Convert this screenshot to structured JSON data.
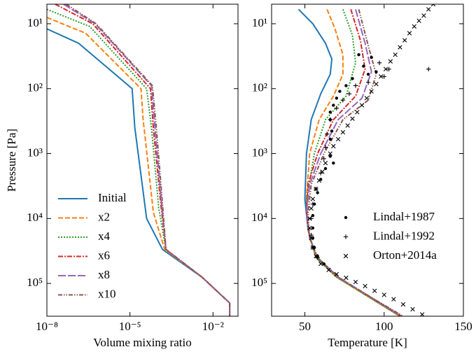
{
  "chart_data": [
    {
      "type": "line",
      "xlabel": "Volume mixing ratio",
      "ylabel": "Pressure [Pa]",
      "xscale": "log",
      "yscale": "log",
      "xlim": [
        1e-08,
        0.08
      ],
      "ylim": [
        320000,
        5
      ],
      "xticks": [
        {
          "value": 1e-08,
          "label": "10⁻⁸"
        },
        {
          "value": 1e-05,
          "label": "10⁻⁵"
        },
        {
          "value": 0.01,
          "label": "10⁻²"
        }
      ],
      "yticks": [
        {
          "value": 10,
          "label": "10¹"
        },
        {
          "value": 100,
          "label": "10²"
        },
        {
          "value": 1000,
          "label": "10³"
        },
        {
          "value": 10000,
          "label": "10⁴"
        },
        {
          "value": 100000,
          "label": "10⁵"
        }
      ],
      "legend": "lower left",
      "series": [
        {
          "name": "Initial",
          "color": "#1f77b4",
          "style": "solid",
          "x": [
            1e-08,
            1.4e-07,
            1.2e-05,
            1.5e-05,
            4e-05,
            0.00015,
            0.004,
            0.04,
            0.04
          ],
          "y": [
            12,
            20,
            100,
            400,
            10000,
            30000,
            80000,
            200000,
            320000
          ]
        },
        {
          "name": "x2",
          "color": "#ff7f0e",
          "style": "dashed",
          "x": [
            1e-08,
            2.5e-07,
            2.5e-05,
            3e-05,
            7e-05,
            0.00018,
            0.004,
            0.04,
            0.04
          ],
          "y": [
            8,
            14,
            100,
            300,
            8000,
            30000,
            80000,
            200000,
            320000
          ]
        },
        {
          "name": "x4",
          "color": "#2ca02c",
          "style": "dotted",
          "x": [
            1e-08,
            3.5e-07,
            4e-05,
            6e-05,
            0.00011,
            0.0002,
            0.004,
            0.04,
            0.04
          ],
          "y": [
            6,
            11,
            100,
            400,
            7000,
            30000,
            80000,
            200000,
            320000
          ]
        },
        {
          "name": "x6",
          "color": "#d62728",
          "style": "dashdot",
          "x": [
            2e-08,
            4.5e-07,
            5.5e-05,
            7e-05,
            0.00013,
            0.0002,
            0.004,
            0.04,
            0.04
          ],
          "y": [
            5,
            10,
            100,
            400,
            6000,
            30000,
            80000,
            200000,
            320000
          ]
        },
        {
          "name": "x8",
          "color": "#9467bd",
          "style": "longdash",
          "x": [
            4e-08,
            5.5e-07,
            6e-05,
            8e-05,
            0.00014,
            0.0002,
            0.004,
            0.04,
            0.04
          ],
          "y": [
            5,
            10,
            90,
            400,
            6000,
            30000,
            80000,
            200000,
            320000
          ]
        },
        {
          "name": "x10",
          "color": "#8c564b",
          "style": "dashdotdot",
          "x": [
            5e-08,
            6e-07,
            6.5e-05,
            9e-05,
            0.00015,
            0.0002,
            0.004,
            0.04,
            0.04
          ],
          "y": [
            5,
            10,
            90,
            400,
            6000,
            30000,
            80000,
            200000,
            320000
          ]
        }
      ]
    },
    {
      "type": "line",
      "xlabel": "Temperature [K]",
      "xscale": "linear",
      "yscale": "log",
      "xlim": [
        29,
        150
      ],
      "ylim": [
        320000,
        5
      ],
      "xticks": [
        50,
        100,
        150
      ],
      "yticks": [
        {
          "value": 10,
          "label": "10¹"
        },
        {
          "value": 100,
          "label": "10²"
        },
        {
          "value": 1000,
          "label": "10³"
        },
        {
          "value": 10000,
          "label": "10⁴"
        },
        {
          "value": 100000,
          "label": "10⁵"
        }
      ],
      "legend": "center right",
      "series": [
        {
          "color": "#1f77b4",
          "style": "solid",
          "x": [
            46,
            55,
            63,
            67,
            66,
            60,
            54,
            51,
            50,
            52,
            57,
            70,
            90,
            110
          ],
          "y": [
            6,
            10,
            20,
            35,
            60,
            120,
            300,
            1000,
            5000,
            15000,
            40000,
            80000,
            160000,
            320000
          ]
        },
        {
          "color": "#ff7f0e",
          "style": "dashed",
          "x": [
            64,
            69,
            74,
            74,
            68,
            59,
            53,
            51,
            52,
            57,
            70,
            90,
            110
          ],
          "y": [
            6,
            12,
            30,
            60,
            130,
            300,
            1000,
            5000,
            15000,
            40000,
            80000,
            160000,
            320000
          ]
        },
        {
          "color": "#2ca02c",
          "style": "dotted",
          "x": [
            74,
            80,
            82,
            76,
            63,
            56,
            51,
            52,
            57,
            70,
            90,
            110
          ],
          "y": [
            6,
            15,
            40,
            130,
            300,
            1000,
            5000,
            15000,
            40000,
            80000,
            160000,
            320000
          ]
        },
        {
          "color": "#d62728",
          "style": "dashdot",
          "x": [
            79,
            85,
            88,
            82,
            68,
            58,
            52,
            51,
            53,
            58,
            71,
            91,
            111
          ],
          "y": [
            6,
            18,
            50,
            130,
            300,
            1000,
            3000,
            8000,
            20000,
            40000,
            80000,
            160000,
            320000
          ]
        },
        {
          "color": "#9467bd",
          "style": "longdash",
          "x": [
            82,
            88,
            92,
            86,
            71,
            60,
            53,
            51,
            53,
            58,
            71,
            91,
            111
          ],
          "y": [
            6,
            20,
            55,
            140,
            300,
            1000,
            3000,
            8000,
            20000,
            40000,
            80000,
            160000,
            320000
          ]
        },
        {
          "color": "#8c564b",
          "style": "dashdotdot",
          "x": [
            84,
            90,
            95,
            90,
            74,
            62,
            54,
            52,
            53,
            58,
            71,
            91,
            112
          ],
          "y": [
            6,
            22,
            60,
            150,
            300,
            1000,
            3000,
            8000,
            20000,
            40000,
            80000,
            160000,
            320000
          ]
        },
        {
          "name": "Lindal+1987",
          "color": "#000000",
          "marker": "dot",
          "x": [
            84,
            87,
            92,
            95,
            90,
            80,
            76,
            72,
            70,
            68,
            66,
            66,
            67,
            66,
            66,
            68,
            63,
            60,
            58,
            56,
            55,
            55,
            55,
            56,
            58,
            62
          ],
          "y": [
            30,
            45,
            33,
            55,
            60,
            70,
            90,
            110,
            140,
            180,
            230,
            300,
            450,
            600,
            1100,
            1400,
            1700,
            2500,
            4000,
            6000,
            9000,
            14000,
            20000,
            28000,
            38000,
            50000
          ]
        },
        {
          "name": "Lindal+1992",
          "color": "#000000",
          "marker": "plus",
          "x": [
            97,
            103,
            128,
            100,
            90,
            82,
            78,
            74,
            70,
            66,
            64,
            63,
            62,
            60,
            57,
            55,
            54,
            54,
            55,
            58
          ],
          "y": [
            40,
            50,
            50,
            65,
            80,
            90,
            120,
            150,
            200,
            300,
            500,
            800,
            1200,
            2000,
            3500,
            6000,
            10000,
            18000,
            28000,
            40000
          ]
        },
        {
          "name": "Orton+2014a",
          "color": "#000000",
          "marker": "x",
          "x": [
            131,
            128,
            125,
            122,
            119,
            116,
            113,
            110,
            107,
            104,
            101,
            98,
            95,
            92,
            89,
            86,
            83,
            80,
            77,
            74,
            71,
            68,
            66,
            63,
            61,
            59,
            57,
            55,
            54,
            53,
            53,
            54,
            55,
            57,
            60,
            65,
            70,
            76,
            82,
            88,
            94,
            100,
            106,
            112,
            118,
            124
          ],
          "y": [
            5,
            6,
            7.5,
            9,
            11,
            14,
            18,
            23,
            30,
            38,
            50,
            65,
            85,
            110,
            140,
            180,
            230,
            290,
            370,
            470,
            600,
            770,
            1000,
            1400,
            1900,
            2600,
            3500,
            5000,
            7000,
            10000,
            14000,
            20000,
            28000,
            38000,
            50000,
            62000,
            72000,
            82000,
            95000,
            110000,
            130000,
            150000,
            175000,
            210000,
            250000,
            300000
          ]
        }
      ]
    }
  ]
}
